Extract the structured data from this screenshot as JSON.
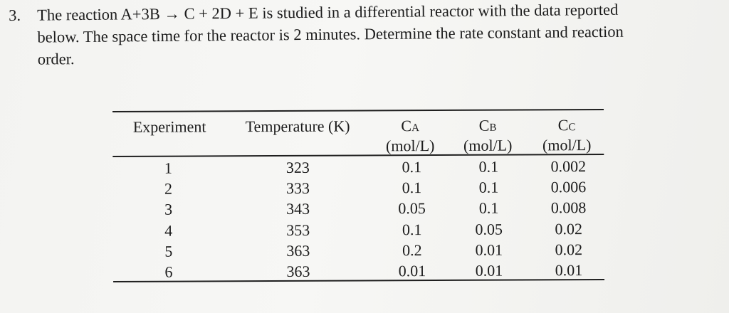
{
  "problem": {
    "number": "3.",
    "lines": [
      "The reaction A+3B → C + 2D + E is studied in a differential reactor with the data reported",
      "below.  The space time for the reactor is 2 minutes. Determine the rate constant and reaction",
      "order."
    ]
  },
  "table": {
    "headers": {
      "experiment": "Experiment",
      "temperature": "Temperature (K)",
      "ca": {
        "main": "C",
        "sub": "A",
        "unit": "(mol/L)"
      },
      "cb": {
        "main": "C",
        "sub": "B",
        "unit": "(mol/L)"
      },
      "cc": {
        "main": "C",
        "sub": "C",
        "unit": "(mol/L)"
      }
    },
    "rows": [
      {
        "exp": "1",
        "temp": "323",
        "ca": "0.1",
        "cb": "0.1",
        "cc": "0.002"
      },
      {
        "exp": "2",
        "temp": "333",
        "ca": "0.1",
        "cb": "0.1",
        "cc": "0.006"
      },
      {
        "exp": "3",
        "temp": "343",
        "ca": "0.05",
        "cb": "0.1",
        "cc": "0.008"
      },
      {
        "exp": "4",
        "temp": "353",
        "ca": "0.1",
        "cb": "0.05",
        "cc": "0.02"
      },
      {
        "exp": "5",
        "temp": "363",
        "ca": "0.2",
        "cb": "0.01",
        "cc": "0.02"
      },
      {
        "exp": "6",
        "temp": "363",
        "ca": "0.01",
        "cb": "0.01",
        "cc": "0.01"
      }
    ]
  }
}
